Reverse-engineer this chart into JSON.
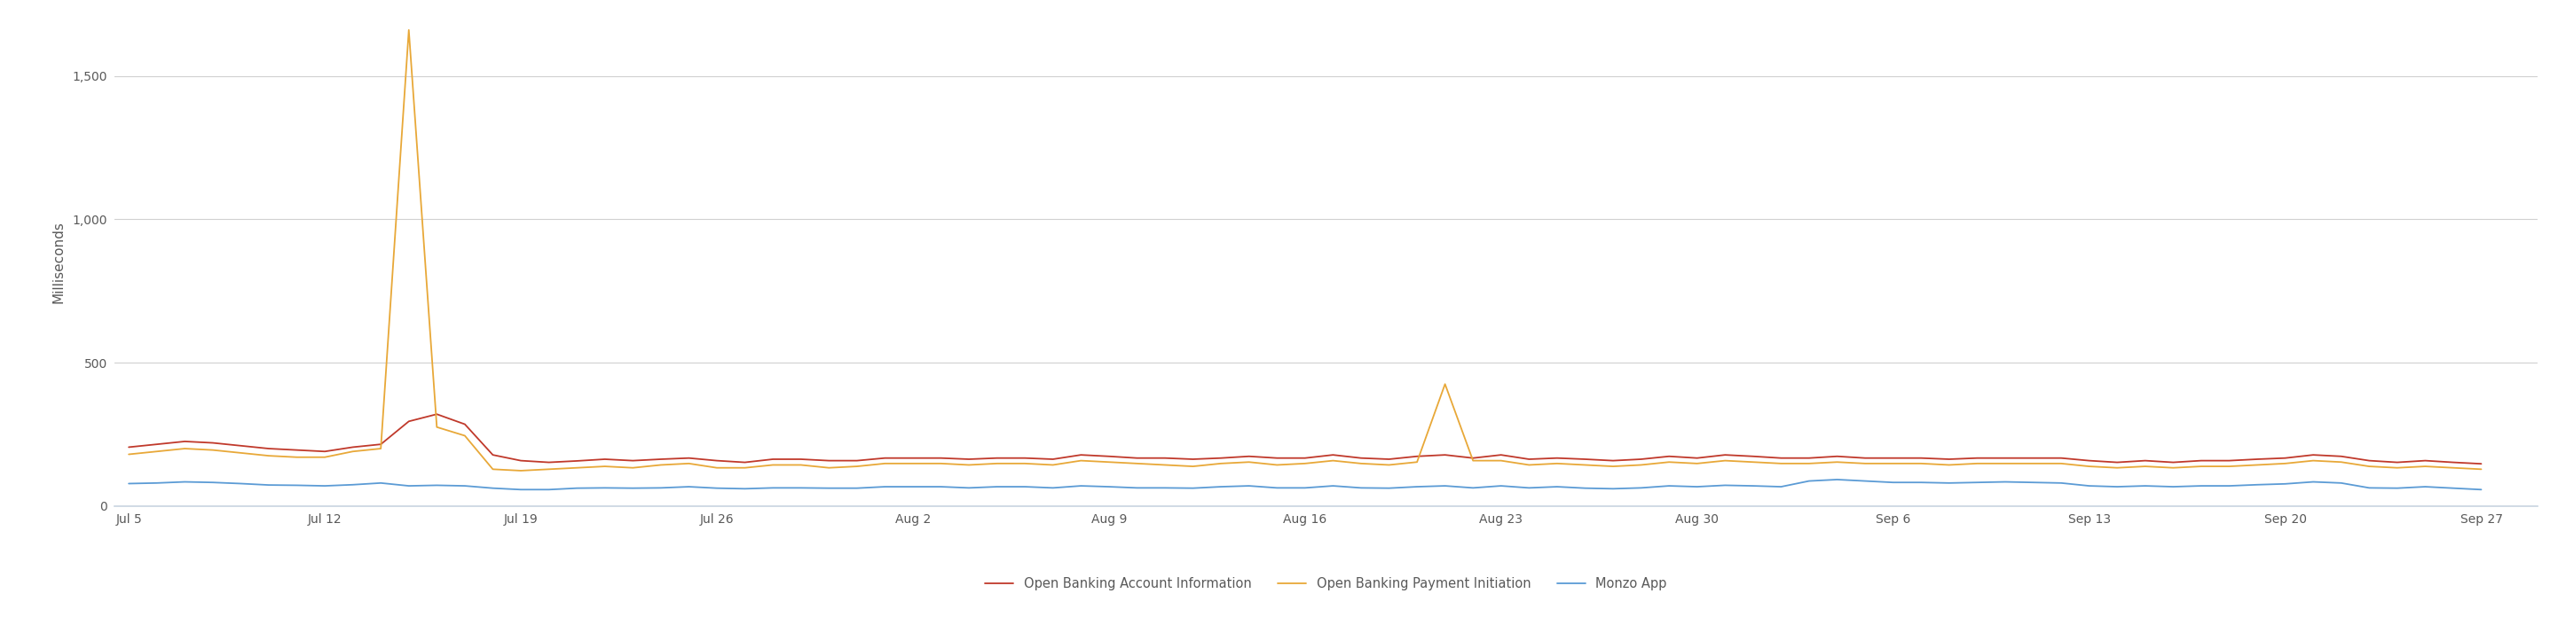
{
  "title": "",
  "ylabel": "Milliseconds",
  "background_color": "#ffffff",
  "grid_color": "#d0d0d0",
  "tick_color": "#595959",
  "x_labels": [
    "Jul 5",
    "Jul 12",
    "Jul 19",
    "Jul 26",
    "Aug 2",
    "Aug 9",
    "Aug 16",
    "Aug 23",
    "Aug 30",
    "Sep 6",
    "Sep 13",
    "Sep 20",
    "Sep 27"
  ],
  "x_positions": [
    0,
    7,
    14,
    21,
    28,
    35,
    42,
    49,
    56,
    63,
    70,
    77,
    84
  ],
  "ylim": [
    0,
    1700
  ],
  "yticks": [
    0,
    500,
    1000,
    1500
  ],
  "xlim": [
    -0.5,
    86
  ],
  "series": [
    {
      "name": "Open Banking Account Information",
      "color": "#c0392b",
      "linewidth": 1.3,
      "data_x": [
        0,
        1,
        2,
        3,
        4,
        5,
        6,
        7,
        8,
        9,
        10,
        11,
        12,
        13,
        14,
        15,
        16,
        17,
        18,
        19,
        20,
        21,
        22,
        23,
        24,
        25,
        26,
        27,
        28,
        29,
        30,
        31,
        32,
        33,
        34,
        35,
        36,
        37,
        38,
        39,
        40,
        41,
        42,
        43,
        44,
        45,
        46,
        47,
        48,
        49,
        50,
        51,
        52,
        53,
        54,
        55,
        56,
        57,
        58,
        59,
        60,
        61,
        62,
        63,
        64,
        65,
        66,
        67,
        68,
        69,
        70,
        71,
        72,
        73,
        74,
        75,
        76,
        77,
        78,
        79,
        80,
        81,
        82,
        83,
        84
      ],
      "data_y": [
        205,
        215,
        225,
        220,
        210,
        200,
        195,
        190,
        205,
        215,
        295,
        320,
        285,
        178,
        158,
        152,
        157,
        163,
        158,
        163,
        167,
        158,
        152,
        163,
        163,
        158,
        158,
        167,
        167,
        167,
        163,
        167,
        167,
        163,
        178,
        173,
        167,
        167,
        163,
        167,
        173,
        167,
        167,
        178,
        167,
        163,
        173,
        178,
        167,
        178,
        163,
        167,
        163,
        158,
        163,
        173,
        167,
        178,
        173,
        167,
        167,
        173,
        167,
        167,
        167,
        163,
        167,
        167,
        167,
        167,
        158,
        152,
        158,
        152,
        158,
        158,
        163,
        167,
        178,
        173,
        158,
        152,
        158,
        152,
        147
      ]
    },
    {
      "name": "Open Banking Payment Initiation",
      "color": "#e8a838",
      "linewidth": 1.3,
      "data_x": [
        0,
        1,
        2,
        3,
        4,
        5,
        6,
        7,
        8,
        9,
        10,
        11,
        12,
        13,
        14,
        15,
        16,
        17,
        18,
        19,
        20,
        21,
        22,
        23,
        24,
        25,
        26,
        27,
        28,
        29,
        30,
        31,
        32,
        33,
        34,
        35,
        36,
        37,
        38,
        39,
        40,
        41,
        42,
        43,
        44,
        45,
        46,
        47,
        48,
        49,
        50,
        51,
        52,
        53,
        54,
        55,
        56,
        57,
        58,
        59,
        60,
        61,
        62,
        63,
        64,
        65,
        66,
        67,
        68,
        69,
        70,
        71,
        72,
        73,
        74,
        75,
        76,
        77,
        78,
        79,
        80,
        81,
        82,
        83,
        84
      ],
      "data_y": [
        180,
        190,
        200,
        195,
        185,
        175,
        170,
        170,
        190,
        200,
        1660,
        275,
        245,
        128,
        123,
        128,
        133,
        138,
        133,
        143,
        148,
        133,
        133,
        143,
        143,
        133,
        138,
        148,
        148,
        148,
        143,
        148,
        148,
        143,
        158,
        153,
        148,
        143,
        138,
        148,
        153,
        143,
        148,
        158,
        148,
        143,
        153,
        425,
        158,
        158,
        143,
        148,
        143,
        138,
        143,
        153,
        148,
        158,
        153,
        148,
        148,
        153,
        148,
        148,
        148,
        143,
        148,
        148,
        148,
        148,
        138,
        133,
        138,
        133,
        138,
        138,
        143,
        148,
        158,
        153,
        138,
        133,
        138,
        133,
        128
      ]
    },
    {
      "name": "Monzo App",
      "color": "#5b9bd5",
      "linewidth": 1.3,
      "data_x": [
        0,
        1,
        2,
        3,
        4,
        5,
        6,
        7,
        8,
        9,
        10,
        11,
        12,
        13,
        14,
        15,
        16,
        17,
        18,
        19,
        20,
        21,
        22,
        23,
        24,
        25,
        26,
        27,
        28,
        29,
        30,
        31,
        32,
        33,
        34,
        35,
        36,
        37,
        38,
        39,
        40,
        41,
        42,
        43,
        44,
        45,
        46,
        47,
        48,
        49,
        50,
        51,
        52,
        53,
        54,
        55,
        56,
        57,
        58,
        59,
        60,
        61,
        62,
        63,
        64,
        65,
        66,
        67,
        68,
        69,
        70,
        71,
        72,
        73,
        74,
        75,
        76,
        77,
        78,
        79,
        80,
        81,
        82,
        83,
        84
      ],
      "data_y": [
        78,
        80,
        84,
        82,
        78,
        73,
        72,
        70,
        74,
        80,
        70,
        72,
        70,
        62,
        57,
        57,
        62,
        63,
        62,
        63,
        67,
        62,
        60,
        63,
        63,
        62,
        62,
        67,
        67,
        67,
        63,
        67,
        67,
        63,
        70,
        67,
        63,
        63,
        62,
        67,
        70,
        63,
        63,
        70,
        63,
        62,
        67,
        70,
        63,
        70,
        63,
        67,
        62,
        60,
        63,
        70,
        67,
        72,
        70,
        67,
        87,
        92,
        87,
        82,
        82,
        80,
        82,
        84,
        82,
        80,
        70,
        67,
        70,
        67,
        70,
        70,
        74,
        77,
        84,
        80,
        63,
        62,
        67,
        62,
        57
      ]
    }
  ],
  "legend": {
    "ncol": 3,
    "frameon": false,
    "fontsize": 10.5
  }
}
